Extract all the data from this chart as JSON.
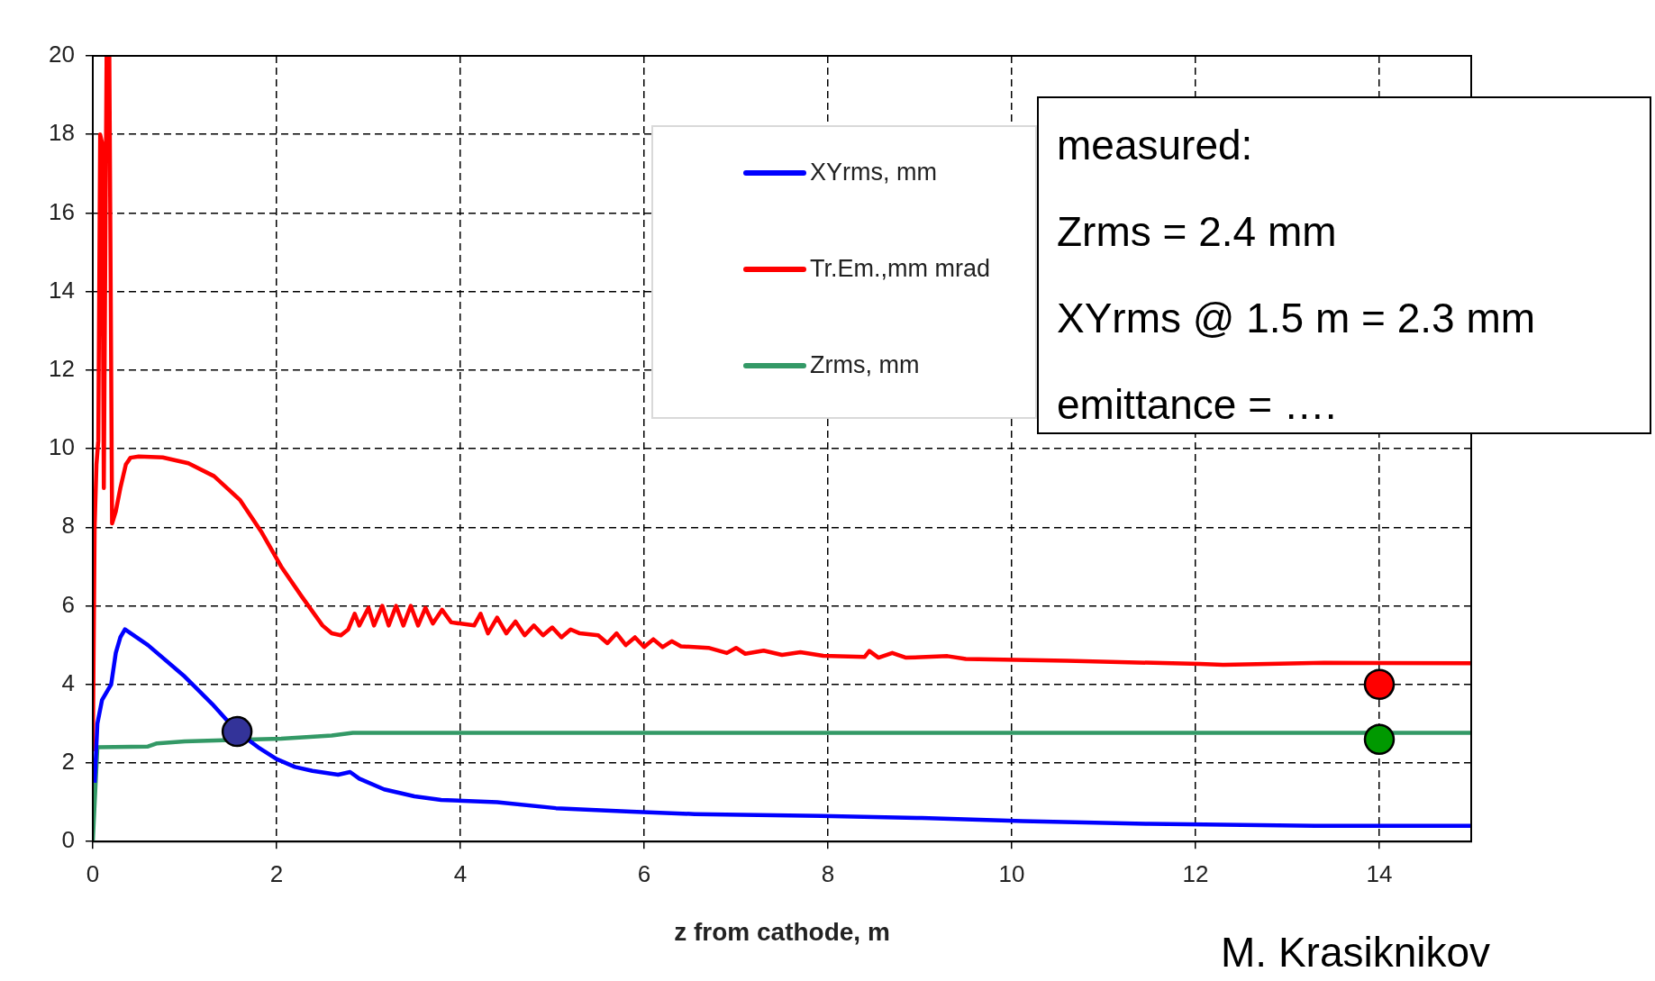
{
  "chart_data": {
    "type": "line",
    "xlabel": "z from cathode, m",
    "xlim": [
      0,
      15
    ],
    "xticks": [
      0,
      2,
      4,
      6,
      8,
      10,
      12,
      14
    ],
    "ylim": [
      0,
      20
    ],
    "yticks": [
      0,
      2,
      4,
      6,
      8,
      10,
      12,
      14,
      16,
      18,
      20
    ],
    "grid": true,
    "legend": "top",
    "line_style": "solid",
    "annotations": [
      "measured:",
      "Zrms = 2.4 mm",
      "XYrms @ 1.5 m = 2.3 mm",
      "emittance = ….",
      "M. Krasiknikov"
    ],
    "series": [
      {
        "name": "XYrms, mm",
        "color": "#0000ff",
        "x": [
          0.02,
          0.05,
          0.1,
          0.2,
          0.25,
          0.3,
          0.35,
          0.6,
          1.0,
          1.3,
          1.57,
          1.8,
          2.0,
          2.2,
          2.39,
          2.67,
          2.8,
          2.9,
          3.17,
          3.5,
          3.79,
          4.4,
          5.04,
          5.86,
          6.55,
          7.92,
          9.02,
          10.12,
          11.5,
          13.3,
          15
        ],
        "values": [
          1.5,
          3.0,
          3.6,
          4.0,
          4.8,
          5.2,
          5.4,
          5.0,
          4.2,
          3.5,
          2.8,
          2.4,
          2.1,
          1.9,
          1.8,
          1.7,
          1.77,
          1.6,
          1.33,
          1.15,
          1.06,
          1.0,
          0.85,
          0.76,
          0.7,
          0.65,
          0.6,
          0.52,
          0.45,
          0.4,
          0.4
        ]
      },
      {
        "name": "Tr.Em.,mm mrad",
        "color": "#ff0000",
        "x": [
          0,
          0.02,
          0.04,
          0.06,
          0.08,
          0.1,
          0.12,
          0.15,
          0.18,
          0.21,
          0.25,
          0.3,
          0.36,
          0.41,
          0.5,
          0.76,
          1.04,
          1.32,
          1.6,
          1.83,
          2.05,
          2.27,
          2.5,
          2.6,
          2.7,
          2.78,
          2.85,
          2.9,
          3.0,
          3.06,
          3.15,
          3.22,
          3.3,
          3.38,
          3.46,
          3.54,
          3.62,
          3.7,
          3.8,
          3.9,
          4.15,
          4.22,
          4.3,
          4.4,
          4.5,
          4.6,
          4.7,
          4.8,
          4.9,
          5.0,
          5.1,
          5.2,
          5.3,
          5.5,
          5.6,
          5.7,
          5.8,
          5.9,
          6.0,
          6.1,
          6.2,
          6.3,
          6.4,
          6.7,
          6.9,
          7.0,
          7.1,
          7.3,
          7.5,
          7.7,
          7.95,
          8.4,
          8.45,
          8.55,
          8.7,
          8.85,
          9.3,
          9.5,
          10.6,
          12.05,
          12.3,
          13.4,
          15
        ],
        "values": [
          2.3,
          8,
          9.6,
          10.2,
          18,
          17.8,
          9,
          20,
          20,
          8.1,
          8.4,
          9.0,
          9.6,
          9.77,
          9.8,
          9.78,
          9.63,
          9.3,
          8.7,
          7.9,
          7.0,
          6.25,
          5.5,
          5.3,
          5.25,
          5.4,
          5.8,
          5.5,
          5.95,
          5.5,
          6.0,
          5.5,
          6.0,
          5.5,
          6.0,
          5.5,
          5.95,
          5.55,
          5.9,
          5.58,
          5.5,
          5.8,
          5.3,
          5.7,
          5.3,
          5.6,
          5.25,
          5.5,
          5.25,
          5.45,
          5.2,
          5.4,
          5.3,
          5.25,
          5.05,
          5.3,
          5.0,
          5.2,
          4.95,
          5.15,
          4.95,
          5.1,
          4.97,
          4.93,
          4.8,
          4.93,
          4.78,
          4.86,
          4.75,
          4.82,
          4.73,
          4.7,
          4.85,
          4.68,
          4.8,
          4.68,
          4.72,
          4.65,
          4.6,
          4.52,
          4.5,
          4.55,
          4.54
        ]
      },
      {
        "name": "Zrms, mm",
        "color": "#339966",
        "x": [
          0,
          0.05,
          0.6,
          0.7,
          1.0,
          2.05,
          2.6,
          2.83,
          15
        ],
        "values": [
          0,
          2.4,
          2.42,
          2.5,
          2.55,
          2.62,
          2.7,
          2.77,
          2.77
        ]
      },
      {
        "type": "scatter",
        "marker": "circle",
        "color": "#333399",
        "x": [
          1.57
        ],
        "values": [
          2.8
        ]
      },
      {
        "type": "scatter",
        "marker": "circle",
        "color": "#ff0000",
        "x": [
          14
        ],
        "values": [
          4.0
        ]
      },
      {
        "type": "scatter",
        "marker": "circle",
        "color": "#009900",
        "x": [
          14
        ],
        "values": [
          2.6
        ]
      }
    ]
  }
}
